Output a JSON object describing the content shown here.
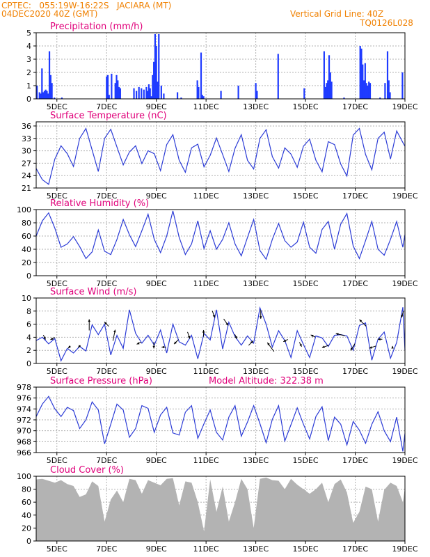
{
  "header": {
    "left_line1": "CPTEC:   055:19W-16:22S   JACIARA (MT)",
    "left_line2": "04DEC2020 40Z (GMT)",
    "right_line1": "Vertical Grid Line: 40Z",
    "right_line2": "TQ0126L028"
  },
  "colors": {
    "header": "#f08000",
    "title": "#e0007a",
    "line": "#2b3bd6",
    "bar": "#1f3bff",
    "fill": "#b3b3b3",
    "grid": "#b0b0b0"
  },
  "x_axis": {
    "labels": [
      "5DEC",
      "7DEC",
      "9DEC",
      "11DEC",
      "13DEC",
      "15DEC",
      "17DEC",
      "19DEC"
    ],
    "days": [
      5,
      7,
      9,
      11,
      13,
      15,
      17,
      19
    ],
    "range": [
      4.167,
      19.0
    ]
  },
  "chart_data": [
    {
      "type": "bar",
      "title": "Precipitation (mm/h)",
      "ylim": [
        0,
        5
      ],
      "yticks": [
        0,
        1,
        2,
        3,
        4,
        5
      ],
      "x": [
        4.2,
        4.3,
        4.35,
        4.4,
        4.45,
        4.5,
        4.55,
        4.6,
        4.65,
        4.7,
        4.75,
        4.8,
        4.9,
        5.2,
        7.0,
        7.05,
        7.1,
        7.2,
        7.35,
        7.4,
        7.45,
        7.5,
        7.55,
        8.1,
        8.2,
        8.3,
        8.4,
        8.5,
        8.6,
        8.65,
        8.7,
        8.75,
        8.8,
        8.85,
        8.9,
        8.95,
        9.0,
        9.05,
        9.1,
        9.2,
        9.3,
        9.85,
        10.0,
        10.65,
        10.7,
        10.8,
        10.85,
        10.9,
        11.6,
        12.3,
        13.0,
        13.05,
        13.9,
        14.95,
        15.75,
        15.8,
        15.85,
        15.9,
        15.95,
        16.0,
        16.05,
        16.55,
        17.2,
        17.25,
        17.3,
        17.35,
        17.4,
        17.45,
        17.5,
        17.55,
        17.6,
        18.0,
        18.2,
        18.3,
        18.35,
        18.4,
        18.9
      ],
      "values": [
        1.0,
        0.5,
        0.4,
        2.3,
        0.5,
        0.6,
        0.7,
        0.6,
        0.4,
        3.6,
        1.8,
        1.2,
        0.1,
        0.1,
        1.7,
        1.8,
        0.3,
        1.9,
        1.2,
        1.8,
        1.4,
        0.9,
        0.8,
        0.8,
        0.6,
        0.9,
        0.8,
        0.7,
        0.9,
        0.6,
        1.1,
        0.8,
        0.2,
        1.8,
        2.8,
        4.9,
        4.0,
        1.3,
        4.9,
        1.0,
        0.4,
        0.5,
        0.1,
        1.4,
        0.9,
        3.5,
        0.3,
        0.2,
        0.6,
        1.0,
        1.2,
        0.6,
        3.4,
        0.8,
        3.6,
        0.9,
        1.2,
        1.4,
        3.3,
        2.0,
        1.3,
        0.1,
        4.0,
        3.8,
        2.6,
        1.4,
        2.7,
        1.2,
        1.0,
        1.3,
        1.2,
        0.1,
        1.2,
        3.6,
        1.4,
        0.5,
        2.0
      ]
    },
    {
      "type": "line",
      "title": "Surface Temperature (nC)",
      "ylim": [
        21,
        37
      ],
      "yticks": [
        21,
        24,
        27,
        30,
        33,
        36
      ],
      "x": [
        4.167,
        4.417,
        4.667,
        4.917,
        5.167,
        5.417,
        5.667,
        5.917,
        6.167,
        6.417,
        6.667,
        6.917,
        7.167,
        7.417,
        7.667,
        7.917,
        8.167,
        8.417,
        8.667,
        8.917,
        9.167,
        9.417,
        9.667,
        9.917,
        10.167,
        10.417,
        10.667,
        10.917,
        11.167,
        11.417,
        11.667,
        11.917,
        12.167,
        12.417,
        12.667,
        12.917,
        13.167,
        13.417,
        13.667,
        13.917,
        14.167,
        14.417,
        14.667,
        14.917,
        15.167,
        15.417,
        15.667,
        15.917,
        16.167,
        16.417,
        16.667,
        16.917,
        17.167,
        17.417,
        17.667,
        17.917,
        18.167,
        18.417,
        18.667,
        18.917,
        19.0
      ],
      "values": [
        25.7,
        23.0,
        21.9,
        28.0,
        31.2,
        29.3,
        26.2,
        33.0,
        35.4,
        30.2,
        25.0,
        33.0,
        35.2,
        30.9,
        26.6,
        29.7,
        31.2,
        26.9,
        30.0,
        29.3,
        25.2,
        31.5,
        33.9,
        27.7,
        24.8,
        30.7,
        31.6,
        26.1,
        28.9,
        33.1,
        29.1,
        25.0,
        30.6,
        33.9,
        27.7,
        25.6,
        33.0,
        35.1,
        28.6,
        25.8,
        30.7,
        29.2,
        26.0,
        31.1,
        32.8,
        27.7,
        24.9,
        32.2,
        31.5,
        26.8,
        23.9,
        33.8,
        35.4,
        29.1,
        25.4,
        33.0,
        34.5,
        28.0,
        34.8,
        32.0,
        31.1
      ]
    },
    {
      "type": "line",
      "title": "Relative Humidity (%)",
      "ylim": [
        0,
        100
      ],
      "yticks": [
        0,
        20,
        40,
        60,
        80,
        100
      ],
      "x": [
        4.167,
        4.417,
        4.667,
        4.917,
        5.167,
        5.417,
        5.667,
        5.917,
        6.167,
        6.417,
        6.667,
        6.917,
        7.167,
        7.417,
        7.667,
        7.917,
        8.167,
        8.417,
        8.667,
        8.917,
        9.167,
        9.417,
        9.667,
        9.917,
        10.167,
        10.417,
        10.667,
        10.917,
        11.167,
        11.417,
        11.667,
        11.917,
        12.167,
        12.417,
        12.667,
        12.917,
        13.167,
        13.417,
        13.667,
        13.917,
        14.167,
        14.417,
        14.667,
        14.917,
        15.167,
        15.417,
        15.667,
        15.917,
        16.167,
        16.417,
        16.667,
        16.917,
        17.167,
        17.417,
        17.667,
        17.917,
        18.167,
        18.417,
        18.667,
        18.917,
        19.0
      ],
      "values": [
        60,
        83,
        95,
        72,
        43,
        48,
        59,
        44,
        26,
        36,
        69,
        37,
        32,
        55,
        85,
        62,
        44,
        68,
        93,
        55,
        35,
        60,
        98,
        58,
        32,
        48,
        83,
        41,
        68,
        40,
        55,
        80,
        48,
        30,
        58,
        85,
        38,
        25,
        55,
        79,
        53,
        43,
        51,
        81,
        43,
        34,
        70,
        82,
        40,
        78,
        94,
        45,
        26,
        53,
        82,
        40,
        31,
        55,
        82,
        43,
        62
      ]
    },
    {
      "type": "line",
      "title": "Surface Wind (m/s)",
      "ylim": [
        0,
        10
      ],
      "yticks": [
        0,
        2,
        4,
        6,
        8,
        10
      ],
      "x": [
        4.167,
        4.417,
        4.667,
        4.917,
        5.167,
        5.417,
        5.667,
        5.917,
        6.167,
        6.417,
        6.667,
        6.917,
        7.167,
        7.417,
        7.667,
        7.917,
        8.167,
        8.417,
        8.667,
        8.917,
        9.167,
        9.417,
        9.667,
        9.917,
        10.167,
        10.417,
        10.667,
        10.917,
        11.167,
        11.417,
        11.667,
        11.917,
        12.167,
        12.417,
        12.667,
        12.917,
        13.167,
        13.417,
        13.667,
        13.917,
        14.167,
        14.417,
        14.667,
        14.917,
        15.167,
        15.417,
        15.667,
        15.917,
        16.167,
        16.417,
        16.667,
        16.917,
        17.167,
        17.417,
        17.667,
        17.917,
        18.167,
        18.417,
        18.667,
        18.917,
        19.0
      ],
      "values": [
        3.5,
        4.0,
        3.0,
        3.8,
        0.4,
        2.3,
        1.6,
        2.6,
        1.9,
        5.9,
        4.4,
        6.0,
        1.3,
        4.3,
        2.3,
        8.2,
        4.6,
        3.1,
        4.3,
        2.8,
        5.1,
        1.6,
        6.0,
        3.3,
        2.8,
        4.3,
        0.7,
        4.6,
        3.6,
        8.2,
        2.2,
        6.3,
        4.1,
        2.8,
        4.2,
        3.1,
        8.5,
        6.0,
        2.5,
        5.0,
        3.5,
        0.9,
        5.0,
        2.9,
        0.9,
        4.2,
        3.9,
        2.6,
        4.3,
        4.4,
        4.2,
        2.0,
        5.8,
        6.2,
        0.5,
        3.7,
        4.8,
        0.8,
        3.2,
        8.6,
        2.0
      ],
      "arrows": {
        "x": [
          4.5,
          4.83,
          5.5,
          5.9,
          6.3,
          7.0,
          7.3,
          8.3,
          8.9,
          9.3,
          9.8,
          10.3,
          10.9,
          11.3,
          11.8,
          12.2,
          12.8,
          13.2,
          13.6,
          14.2,
          14.8,
          15.3,
          15.8,
          16.4,
          16.9,
          17.3,
          17.7,
          18.0,
          18.5,
          18.9
        ],
        "u": [
          1,
          -2,
          -1,
          -1,
          0,
          -2,
          1,
          -2,
          0,
          -2,
          -2,
          1,
          0,
          1,
          2,
          1,
          2,
          0,
          -3,
          -2,
          1,
          -2,
          -3,
          -4,
          -2,
          -3,
          -3,
          -2,
          0,
          -1
        ],
        "v": [
          -2,
          -1,
          -1,
          -1,
          5,
          2,
          5,
          -1,
          -3,
          0,
          -2,
          -3,
          3,
          -3,
          -3,
          -2,
          2,
          -4,
          4,
          -1,
          -2,
          1,
          -1,
          1,
          -3,
          3,
          -1,
          0,
          1,
          -3
        ],
        "arrow_color": "#000000"
      }
    },
    {
      "type": "line",
      "title": "Surface Pressure (hPa)",
      "annotation": "Model Altitude: 322.38 m",
      "ylim": [
        966,
        978
      ],
      "yticks": [
        966,
        968,
        970,
        972,
        974,
        976,
        978
      ],
      "x": [
        4.167,
        4.417,
        4.667,
        4.917,
        5.167,
        5.417,
        5.667,
        5.917,
        6.167,
        6.417,
        6.667,
        6.917,
        7.167,
        7.417,
        7.667,
        7.917,
        8.167,
        8.417,
        8.667,
        8.917,
        9.167,
        9.417,
        9.667,
        9.917,
        10.167,
        10.417,
        10.667,
        10.917,
        11.167,
        11.417,
        11.667,
        11.917,
        12.167,
        12.417,
        12.667,
        12.917,
        13.167,
        13.417,
        13.667,
        13.917,
        14.167,
        14.417,
        14.667,
        14.917,
        15.167,
        15.417,
        15.667,
        15.917,
        16.167,
        16.417,
        16.667,
        16.917,
        17.167,
        17.417,
        17.667,
        17.917,
        18.167,
        18.417,
        18.667,
        18.917,
        19.0
      ],
      "values": [
        972.6,
        974.9,
        976.3,
        974.0,
        972.6,
        974.3,
        973.7,
        970.4,
        972.0,
        975.3,
        973.8,
        967.6,
        971.2,
        974.9,
        973.8,
        968.8,
        970.4,
        974.6,
        974.1,
        969.7,
        972.9,
        974.3,
        969.6,
        969.2,
        973.4,
        974.6,
        968.6,
        971.3,
        973.8,
        969.7,
        968.3,
        972.5,
        974.6,
        969.0,
        971.6,
        974.6,
        971.3,
        967.8,
        972.1,
        974.6,
        968.1,
        971.1,
        974.2,
        971.2,
        968.5,
        972.6,
        974.4,
        968.2,
        972.5,
        971.2,
        967.4,
        971.7,
        970.1,
        967.7,
        971.2,
        973.5,
        970.0,
        968.0,
        972.5,
        966.2,
        969.5
      ]
    },
    {
      "type": "area",
      "title": "Cloud Cover (%)",
      "ylim": [
        0,
        100
      ],
      "yticks": [
        0,
        20,
        40,
        60,
        80,
        100
      ],
      "x": [
        4.167,
        4.417,
        4.667,
        4.917,
        5.167,
        5.417,
        5.667,
        5.917,
        6.167,
        6.417,
        6.667,
        6.917,
        7.167,
        7.417,
        7.667,
        7.917,
        8.167,
        8.417,
        8.667,
        8.917,
        9.167,
        9.417,
        9.667,
        9.917,
        10.167,
        10.417,
        10.667,
        10.917,
        11.167,
        11.417,
        11.667,
        11.917,
        12.167,
        12.417,
        12.667,
        12.917,
        13.167,
        13.417,
        13.667,
        13.917,
        14.167,
        14.417,
        14.667,
        14.917,
        15.167,
        15.417,
        15.667,
        15.917,
        16.167,
        16.417,
        16.667,
        16.917,
        17.167,
        17.417,
        17.667,
        17.917,
        18.167,
        18.417,
        18.667,
        18.917,
        19.0
      ],
      "values": [
        95,
        96,
        93,
        90,
        94,
        88,
        85,
        68,
        72,
        92,
        85,
        30,
        64,
        78,
        60,
        96,
        94,
        73,
        94,
        90,
        86,
        96,
        97,
        55,
        92,
        90,
        60,
        15,
        95,
        45,
        84,
        30,
        60,
        96,
        80,
        20,
        96,
        98,
        94,
        93,
        80,
        96,
        87,
        80,
        73,
        80,
        90,
        60,
        88,
        95,
        75,
        28,
        45,
        84,
        80,
        30,
        79,
        90,
        85,
        60,
        82
      ]
    }
  ]
}
